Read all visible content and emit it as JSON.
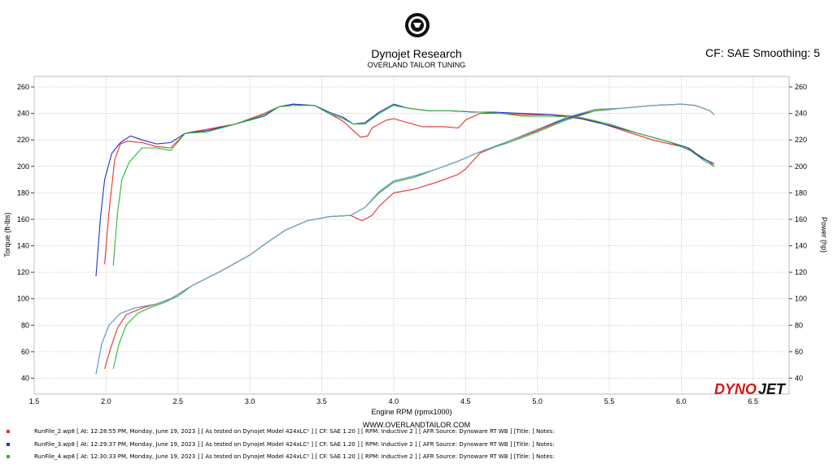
{
  "header": {
    "title": "Dynojet Research",
    "subtitle": "OVERLAND TAILOR TUNING",
    "settings": "CF: SAE Smoothing: 5"
  },
  "footer": {
    "website": "WWW.OVERLANDTAILOR.COM"
  },
  "brand": {
    "logo_text": "DYNOJET",
    "logo_part1": "DYNO",
    "logo_part2": "JET"
  },
  "legend": [
    {
      "color": "#e8302a",
      "text": "RunFile_2.wp8  [ At: 12:28:55 PM, Monday, June 19, 2023 ] [ As tested on Dynojet Model 424xLC² ] [ CF: SAE 1.20 ] [ RPM: Inductive 2 ] [ AFR Source: Dynoware RT WB ] [Title: ]   Notes:"
    },
    {
      "color": "#2034c8",
      "text": "RunFile_3.wp8  [ At: 12:29:37 PM, Monday, June 19, 2023 ] [ As tested on Dynojet Model 424xLC² ] [ CF: SAE 1.20 ] [ RPM: Inductive 2 ] [ AFR Source: Dynoware RT WB ] [Title: ]   Notes:"
    },
    {
      "color": "#2db52d",
      "text": "RunFile_4.wp8  [ At: 12:30:33 PM, Monday, June 19, 2023 ] [ As tested on Dynojet Model 424xLC² ] [ CF: SAE 1.20 ] [ RPM: Inductive 2 ] [ AFR Source: Dynoware RT WB ] [Title: ]   Notes:"
    }
  ],
  "chart_data": {
    "type": "line",
    "xlabel": "Engine RPM (rpmx1000)",
    "ylabel_left": "Torque (ft-lbs)",
    "ylabel_right": "Power (hp)",
    "xlim": [
      1.5,
      6.75
    ],
    "ylim": [
      28,
      268
    ],
    "x_ticks": [
      1.5,
      2.0,
      2.5,
      3.0,
      3.5,
      4.0,
      4.5,
      5.0,
      5.5,
      6.0,
      6.5
    ],
    "x_tick_labels": [
      "1.5",
      "2.0",
      "2.5",
      "3.0",
      "3.5",
      "4.0",
      "4.5",
      "5.0",
      "5.5",
      "6.0",
      "6.5"
    ],
    "y_ticks": [
      40,
      60,
      80,
      100,
      120,
      140,
      160,
      180,
      200,
      220,
      240,
      260
    ],
    "y_tick_labels": [
      "40",
      "60",
      "80",
      "100",
      "120",
      "140",
      "160",
      "180",
      "200",
      "220",
      "240",
      "260"
    ],
    "grid": true,
    "series": [
      {
        "name": "RunFile_2.wp8 Torque",
        "color": "#e8302a",
        "points": [
          [
            1.99,
            126
          ],
          [
            2.02,
            165
          ],
          [
            2.06,
            205
          ],
          [
            2.1,
            217
          ],
          [
            2.15,
            219
          ],
          [
            2.25,
            218
          ],
          [
            2.35,
            215
          ],
          [
            2.45,
            214
          ],
          [
            2.55,
            225
          ],
          [
            2.7,
            228
          ],
          [
            2.9,
            232
          ],
          [
            3.1,
            240
          ],
          [
            3.2,
            245
          ],
          [
            3.3,
            247
          ],
          [
            3.45,
            246
          ],
          [
            3.55,
            240
          ],
          [
            3.65,
            234
          ],
          [
            3.72,
            227
          ],
          [
            3.77,
            222
          ],
          [
            3.82,
            223
          ],
          [
            3.85,
            229
          ],
          [
            3.95,
            235
          ],
          [
            4.0,
            236
          ],
          [
            4.1,
            233
          ],
          [
            4.2,
            230
          ],
          [
            4.35,
            230
          ],
          [
            4.45,
            229
          ],
          [
            4.5,
            235
          ],
          [
            4.6,
            240
          ],
          [
            4.75,
            240
          ],
          [
            4.9,
            239
          ],
          [
            5.1,
            239
          ],
          [
            5.25,
            238
          ],
          [
            5.4,
            234
          ],
          [
            5.6,
            227
          ],
          [
            5.8,
            220
          ],
          [
            6.0,
            215
          ],
          [
            6.1,
            210
          ],
          [
            6.2,
            203
          ],
          [
            6.23,
            200
          ]
        ]
      },
      {
        "name": "RunFile_3.wp8 Torque",
        "color": "#2034c8",
        "points": [
          [
            1.93,
            117
          ],
          [
            1.96,
            160
          ],
          [
            1.99,
            190
          ],
          [
            2.04,
            210
          ],
          [
            2.1,
            218
          ],
          [
            2.17,
            223
          ],
          [
            2.25,
            220
          ],
          [
            2.35,
            217
          ],
          [
            2.45,
            218
          ],
          [
            2.55,
            225
          ],
          [
            2.7,
            227
          ],
          [
            2.9,
            232
          ],
          [
            3.1,
            238
          ],
          [
            3.2,
            245
          ],
          [
            3.3,
            247
          ],
          [
            3.45,
            246
          ],
          [
            3.55,
            241
          ],
          [
            3.65,
            237
          ],
          [
            3.72,
            232
          ],
          [
            3.8,
            233
          ],
          [
            3.9,
            241
          ],
          [
            4.0,
            247
          ],
          [
            4.1,
            244
          ],
          [
            4.25,
            242
          ],
          [
            4.4,
            242
          ],
          [
            4.55,
            241
          ],
          [
            4.7,
            241
          ],
          [
            4.9,
            240
          ],
          [
            5.1,
            239
          ],
          [
            5.3,
            236
          ],
          [
            5.5,
            231
          ],
          [
            5.7,
            225
          ],
          [
            5.9,
            219
          ],
          [
            6.05,
            214
          ],
          [
            6.15,
            206
          ],
          [
            6.23,
            202
          ]
        ]
      },
      {
        "name": "RunFile_4.wp8 Torque",
        "color": "#2db52d",
        "points": [
          [
            2.05,
            125
          ],
          [
            2.08,
            165
          ],
          [
            2.11,
            190
          ],
          [
            2.16,
            203
          ],
          [
            2.25,
            214
          ],
          [
            2.35,
            214
          ],
          [
            2.45,
            212
          ],
          [
            2.55,
            225
          ],
          [
            2.7,
            226
          ],
          [
            2.9,
            232
          ],
          [
            3.1,
            239
          ],
          [
            3.2,
            245
          ],
          [
            3.3,
            246
          ],
          [
            3.45,
            246
          ],
          [
            3.55,
            240
          ],
          [
            3.65,
            236
          ],
          [
            3.72,
            232
          ],
          [
            3.8,
            232
          ],
          [
            3.9,
            240
          ],
          [
            4.0,
            246
          ],
          [
            4.1,
            244
          ],
          [
            4.25,
            242
          ],
          [
            4.4,
            242
          ],
          [
            4.6,
            241
          ],
          [
            4.75,
            240
          ],
          [
            4.9,
            238
          ],
          [
            5.1,
            238
          ],
          [
            5.3,
            237
          ],
          [
            5.5,
            232
          ],
          [
            5.7,
            225
          ],
          [
            5.9,
            219
          ],
          [
            6.05,
            213
          ],
          [
            6.15,
            205
          ],
          [
            6.23,
            200
          ]
        ]
      },
      {
        "name": "RunFile_2.wp8 Power",
        "color": "#e8302a",
        "points": [
          [
            1.99,
            47
          ],
          [
            2.03,
            62
          ],
          [
            2.08,
            78
          ],
          [
            2.14,
            88
          ],
          [
            2.25,
            93
          ],
          [
            2.35,
            96
          ],
          [
            2.45,
            100
          ],
          [
            2.6,
            110
          ],
          [
            2.8,
            121
          ],
          [
            3.0,
            133
          ],
          [
            3.1,
            141
          ],
          [
            3.25,
            152
          ],
          [
            3.4,
            159
          ],
          [
            3.55,
            162
          ],
          [
            3.7,
            163
          ],
          [
            3.78,
            159
          ],
          [
            3.85,
            163
          ],
          [
            3.9,
            170
          ],
          [
            4.0,
            180
          ],
          [
            4.15,
            183
          ],
          [
            4.3,
            188
          ],
          [
            4.45,
            194
          ],
          [
            4.5,
            198
          ],
          [
            4.6,
            210
          ],
          [
            4.8,
            219
          ],
          [
            5.0,
            227
          ],
          [
            5.2,
            236
          ],
          [
            5.4,
            242
          ],
          [
            5.6,
            244
          ],
          [
            5.8,
            246
          ],
          [
            6.0,
            247
          ],
          [
            6.1,
            246
          ],
          [
            6.2,
            242
          ],
          [
            6.23,
            239
          ]
        ]
      },
      {
        "name": "RunFile_3.wp8 Power",
        "color": "#2034c8",
        "points": [
          [
            1.93,
            43
          ],
          [
            1.97,
            66
          ],
          [
            2.02,
            80
          ],
          [
            2.1,
            89
          ],
          [
            2.2,
            93
          ],
          [
            2.35,
            96
          ],
          [
            2.45,
            100
          ],
          [
            2.6,
            110
          ],
          [
            2.8,
            121
          ],
          [
            3.0,
            133
          ],
          [
            3.1,
            141
          ],
          [
            3.25,
            152
          ],
          [
            3.4,
            159
          ],
          [
            3.55,
            162
          ],
          [
            3.7,
            163
          ],
          [
            3.8,
            169
          ],
          [
            3.9,
            181
          ],
          [
            4.0,
            189
          ],
          [
            4.15,
            193
          ],
          [
            4.3,
            198
          ],
          [
            4.45,
            204
          ],
          [
            4.6,
            211
          ],
          [
            4.8,
            219
          ],
          [
            5.0,
            228
          ],
          [
            5.2,
            236
          ],
          [
            5.4,
            243
          ],
          [
            5.6,
            244
          ],
          [
            5.8,
            246
          ],
          [
            6.0,
            247
          ],
          [
            6.1,
            246
          ],
          [
            6.2,
            242
          ],
          [
            6.23,
            239
          ]
        ]
      },
      {
        "name": "RunFile_4.wp8 Power",
        "color": "#2db52d",
        "points": [
          [
            2.05,
            47
          ],
          [
            2.09,
            66
          ],
          [
            2.14,
            80
          ],
          [
            2.22,
            89
          ],
          [
            2.3,
            93
          ],
          [
            2.4,
            97
          ],
          [
            2.5,
            102
          ],
          [
            2.6,
            110
          ],
          [
            2.8,
            121
          ],
          [
            3.0,
            133
          ],
          [
            3.1,
            141
          ],
          [
            3.25,
            152
          ],
          [
            3.4,
            159
          ],
          [
            3.55,
            162
          ],
          [
            3.7,
            163
          ],
          [
            3.8,
            169
          ],
          [
            3.9,
            180
          ],
          [
            4.0,
            188
          ],
          [
            4.15,
            192
          ],
          [
            4.3,
            198
          ],
          [
            4.45,
            204
          ],
          [
            4.6,
            211
          ],
          [
            4.8,
            218
          ],
          [
            5.0,
            226
          ],
          [
            5.2,
            235
          ],
          [
            5.4,
            242
          ],
          [
            5.6,
            244
          ],
          [
            5.8,
            246
          ],
          [
            6.0,
            247
          ],
          [
            6.1,
            246
          ],
          [
            6.2,
            242
          ],
          [
            6.23,
            239
          ]
        ]
      },
      {
        "name": "Power overlay",
        "color": "#7aa6c8",
        "points": [
          [
            1.93,
            43
          ],
          [
            1.97,
            66
          ],
          [
            2.02,
            80
          ],
          [
            2.1,
            89
          ],
          [
            2.2,
            93
          ],
          [
            2.35,
            96
          ],
          [
            2.45,
            100
          ],
          [
            2.6,
            110
          ],
          [
            2.8,
            121
          ],
          [
            3.0,
            133
          ],
          [
            3.1,
            141
          ],
          [
            3.25,
            152
          ],
          [
            3.4,
            159
          ],
          [
            3.55,
            162
          ],
          [
            3.7,
            163
          ],
          [
            3.8,
            169
          ],
          [
            3.9,
            181
          ],
          [
            4.0,
            189
          ],
          [
            4.15,
            193
          ],
          [
            4.3,
            198
          ],
          [
            4.45,
            204
          ],
          [
            4.6,
            211
          ],
          [
            4.8,
            219
          ],
          [
            5.0,
            228
          ],
          [
            5.2,
            237
          ],
          [
            5.4,
            243
          ],
          [
            5.6,
            244
          ],
          [
            5.8,
            246
          ],
          [
            6.0,
            247
          ],
          [
            6.1,
            246
          ],
          [
            6.2,
            242
          ],
          [
            6.23,
            239
          ]
        ]
      }
    ]
  }
}
